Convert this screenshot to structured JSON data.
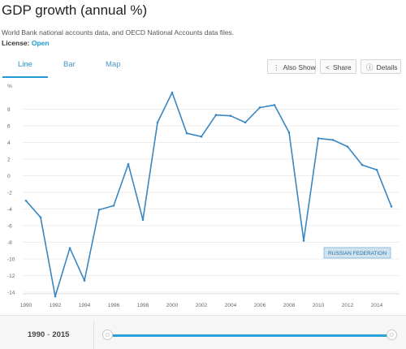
{
  "header": {
    "title": "GDP growth (annual %)",
    "source": "World Bank national accounts data, and OECD National Accounts data files.",
    "license_label": "License:",
    "license_value": "Open"
  },
  "tabs": [
    {
      "label": "Line",
      "active": true
    },
    {
      "label": "Bar",
      "active": false
    },
    {
      "label": "Map",
      "active": false
    }
  ],
  "toolbar": {
    "also_show": "Also Show",
    "share": "Share",
    "details": "Details"
  },
  "range": {
    "start": "1990",
    "end": "2015"
  },
  "colors": {
    "line": "#3a86c0",
    "accent": "#1f9ad6"
  },
  "chart_data": {
    "type": "line",
    "ylabel": "%",
    "ylim": [
      -14,
      10
    ],
    "yticks": [
      -14,
      -12,
      -10,
      -8,
      -6,
      -4,
      -2,
      0,
      2,
      4,
      6,
      8
    ],
    "xticks": [
      1990,
      1992,
      1994,
      1996,
      1998,
      2000,
      2002,
      2004,
      2006,
      2008,
      2010,
      2012,
      2014
    ],
    "grid": "horizontal",
    "series": [
      {
        "name": "RUSSIAN FEDERATION",
        "x": [
          1990,
          1991,
          1992,
          1993,
          1994,
          1995,
          1996,
          1997,
          1998,
          1999,
          2000,
          2001,
          2002,
          2003,
          2004,
          2005,
          2006,
          2007,
          2008,
          2009,
          2010,
          2011,
          2012,
          2013,
          2014,
          2015
        ],
        "y": [
          -3.0,
          -5.0,
          -14.5,
          -8.7,
          -12.6,
          -4.1,
          -3.6,
          1.4,
          -5.3,
          6.4,
          10.0,
          5.1,
          4.7,
          7.3,
          7.2,
          6.4,
          8.2,
          8.5,
          5.2,
          -7.8,
          4.5,
          4.3,
          3.5,
          1.3,
          0.7,
          -3.7
        ]
      }
    ]
  }
}
